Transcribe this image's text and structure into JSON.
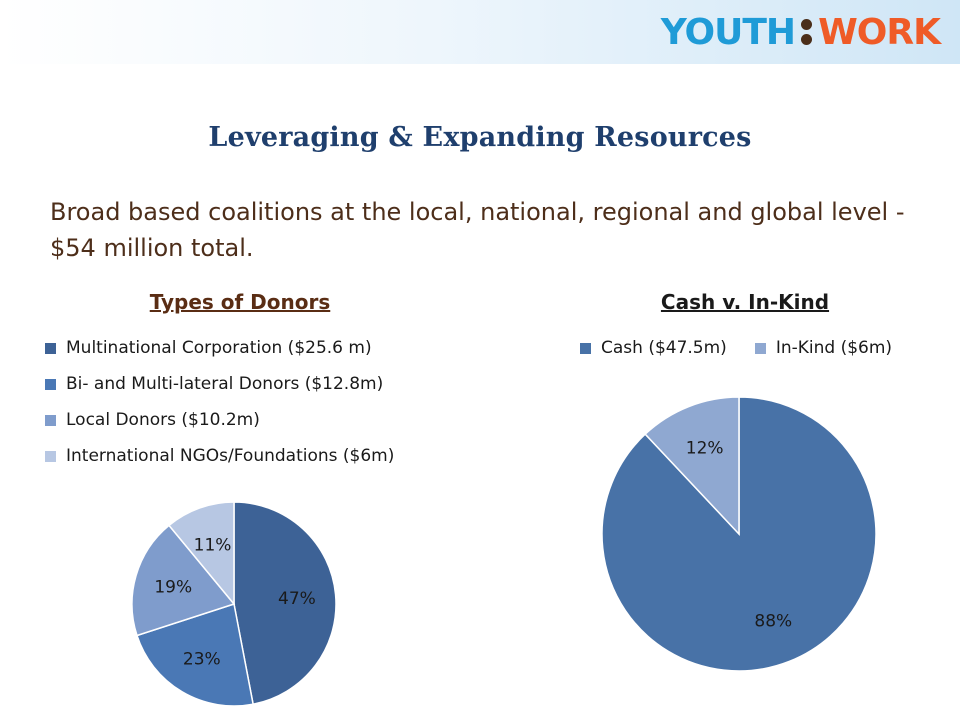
{
  "logo": {
    "youth": "YOUTH",
    "work": "WORK"
  },
  "slide": {
    "title": "Leveraging & Expanding Resources",
    "subtitle": "Broad based coalitions at the local, national, regional and global level - $54 million total."
  },
  "chart_data": [
    {
      "type": "pie",
      "title": "Types of Donors",
      "legend_position": "top-left",
      "categories": [
        "Multinational Corporation ($25.6 m)",
        "Bi- and Multi-lateral Donors ($12.8m)",
        "Local Donors ($10.2m)",
        "International NGOs/Foundations ($6m)"
      ],
      "values": [
        47,
        23,
        19,
        11
      ],
      "labels": [
        "47%",
        "23%",
        "19%",
        "11%"
      ],
      "colors": [
        "#3d6296",
        "#4a78b5",
        "#7f9ccc",
        "#b7c7e3"
      ]
    },
    {
      "type": "pie",
      "title": "Cash v. In-Kind",
      "legend_position": "top",
      "categories": [
        "Cash ($47.5m)",
        "In-Kind ($6m)"
      ],
      "values": [
        88,
        12
      ],
      "labels": [
        "88%",
        "12%"
      ],
      "colors": [
        "#4872a7",
        "#8fa8d1"
      ]
    }
  ]
}
